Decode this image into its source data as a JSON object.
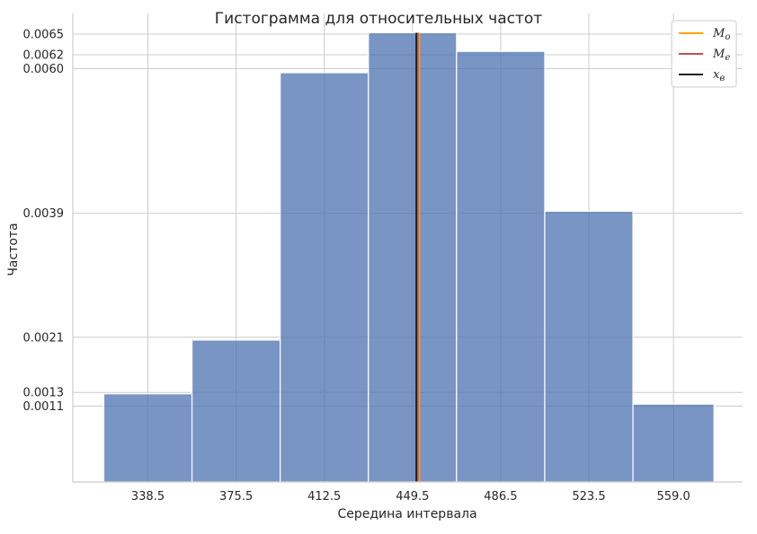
{
  "chart_data": {
    "type": "bar",
    "title": "Гистограмма для относительных частот",
    "xlabel": "Середина интервала",
    "ylabel": "Частота",
    "categories": [
      "338.5",
      "375.5",
      "412.5",
      "449.5",
      "486.5",
      "523.5",
      "559.0"
    ],
    "bins": [
      {
        "left": 320,
        "right": 357,
        "value": 0.00128
      },
      {
        "left": 357,
        "right": 394,
        "value": 0.00206
      },
      {
        "left": 394,
        "right": 431,
        "value": 0.00594
      },
      {
        "left": 431,
        "right": 468,
        "value": 0.00652
      },
      {
        "left": 468,
        "right": 505,
        "value": 0.00625
      },
      {
        "left": 505,
        "right": 542,
        "value": 0.00393
      },
      {
        "left": 542,
        "right": 576,
        "value": 0.00113
      }
    ],
    "x_ticks": [
      338.5,
      375.5,
      412.5,
      449.5,
      486.5,
      523.5,
      559.0
    ],
    "y_ticks": [
      {
        "value": 0.0011,
        "label": "0.0011"
      },
      {
        "value": 0.0013,
        "label": "0.0013"
      },
      {
        "value": 0.0021,
        "label": "0.0021"
      },
      {
        "value": 0.0039,
        "label": "0.0039"
      },
      {
        "value": 0.006,
        "label": "0.0060"
      },
      {
        "value": 0.0062,
        "label": "0.0062"
      },
      {
        "value": 0.0065,
        "label": "0.0065"
      }
    ],
    "xlim": [
      307,
      588
    ],
    "ylim": [
      0,
      0.0068
    ],
    "grid": true,
    "legend_position": "top-right",
    "vlines": [
      {
        "name": "M_o",
        "label_main": "M",
        "label_sub": "o",
        "x": 452.3,
        "color": "#ffa500"
      },
      {
        "name": "M_e",
        "label_main": "M",
        "label_sub": "e",
        "x": 451.7,
        "color": "#c44e52"
      },
      {
        "name": "x_в",
        "label_main": "x",
        "label_sub": "в",
        "x": 451.1,
        "color": "#222222"
      }
    ],
    "bar_color": "#4c72b0"
  }
}
